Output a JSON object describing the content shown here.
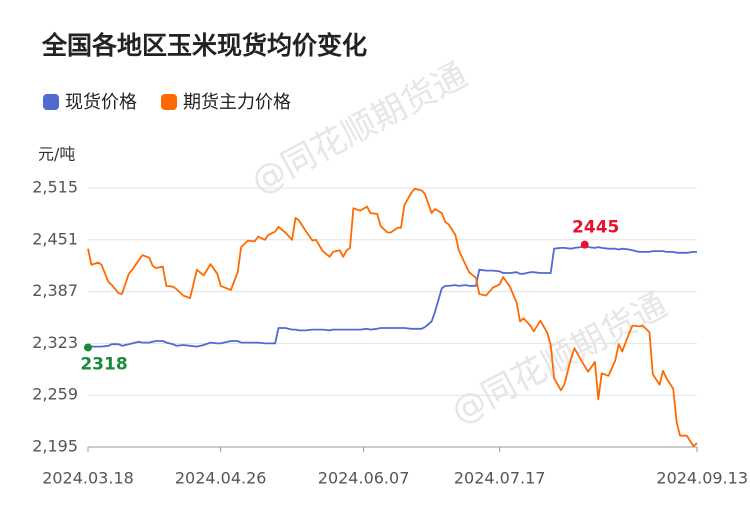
{
  "chart_data": {
    "type": "line",
    "title": "全国各地区玉米现货均价变化",
    "y_unit": "元/吨",
    "watermark": "@同花顺期货通",
    "x": [
      "2024.03.18",
      "2024.03.19",
      "2024.03.21",
      "2024.03.22",
      "2024.03.24",
      "2024.03.25",
      "2024.03.27",
      "2024.03.28",
      "2024.03.30",
      "2024.03.31",
      "2024.04.02",
      "2024.04.03",
      "2024.04.05",
      "2024.04.06",
      "2024.04.07",
      "2024.04.09",
      "2024.04.10",
      "2024.04.12",
      "2024.04.13",
      "2024.04.15",
      "2024.04.17",
      "2024.04.19",
      "2024.04.21",
      "2024.04.23",
      "2024.04.25",
      "2024.04.26",
      "2024.04.29",
      "2024.05.01",
      "2024.05.02",
      "2024.05.04",
      "2024.05.06",
      "2024.05.07",
      "2024.05.09",
      "2024.05.10",
      "2024.05.12",
      "2024.05.13",
      "2024.05.15",
      "2024.05.17",
      "2024.05.18",
      "2024.05.19",
      "2024.05.21",
      "2024.05.23",
      "2024.05.24",
      "2024.05.26",
      "2024.05.28",
      "2024.05.29",
      "2024.05.31",
      "2024.06.01",
      "2024.06.02",
      "2024.06.03",
      "2024.06.04",
      "2024.06.06",
      "2024.06.08",
      "2024.06.09",
      "2024.06.11",
      "2024.06.12",
      "2024.06.14",
      "2024.06.15",
      "2024.06.17",
      "2024.06.18",
      "2024.06.19",
      "2024.06.21",
      "2024.06.22",
      "2024.06.24",
      "2024.06.25",
      "2024.06.27",
      "2024.06.28",
      "2024.06.30",
      "2024.07.01",
      "2024.07.02",
      "2024.07.04",
      "2024.07.05",
      "2024.07.07",
      "2024.07.08",
      "2024.07.10",
      "2024.07.11",
      "2024.07.13",
      "2024.07.15",
      "2024.07.17",
      "2024.07.18",
      "2024.07.20",
      "2024.07.22",
      "2024.07.23",
      "2024.07.24",
      "2024.07.26",
      "2024.07.27",
      "2024.07.29",
      "2024.07.31",
      "2024.08.01",
      "2024.08.02",
      "2024.08.04",
      "2024.08.05",
      "2024.08.07",
      "2024.08.08",
      "2024.08.10",
      "2024.08.11",
      "2024.08.12",
      "2024.08.14",
      "2024.08.15",
      "2024.08.16",
      "2024.08.18",
      "2024.08.20",
      "2024.08.21",
      "2024.08.22",
      "2024.08.24",
      "2024.08.25",
      "2024.08.27",
      "2024.08.28",
      "2024.08.30",
      "2024.08.31",
      "2024.09.02",
      "2024.09.03",
      "2024.09.04",
      "2024.09.06",
      "2024.09.07",
      "2024.09.08",
      "2024.09.10",
      "2024.09.12",
      "2024.09.13"
    ],
    "series": [
      {
        "name": "现货价格",
        "color": "#4f6bd1",
        "values": [
          2318,
          2319,
          2319,
          2319,
          2320,
          2322,
          2322,
          2320,
          2322,
          2323,
          2325,
          2324,
          2324,
          2325,
          2326,
          2326,
          2324,
          2322,
          2320,
          2321,
          2320,
          2319,
          2321,
          2324,
          2323,
          2323,
          2326,
          2326,
          2324,
          2324,
          2324,
          2324,
          2323,
          2323,
          2323,
          2342,
          2342,
          2340,
          2340,
          2339,
          2339,
          2340,
          2340,
          2340,
          2339,
          2340,
          2340,
          2340,
          2340,
          2340,
          2340,
          2340,
          2341,
          2340,
          2341,
          2342,
          2342,
          2342,
          2342,
          2342,
          2342,
          2341,
          2341,
          2341,
          2343,
          2350,
          2362,
          2391,
          2394,
          2394,
          2395,
          2394,
          2395,
          2394,
          2394,
          2414,
          2413,
          2413,
          2412,
          2410,
          2410,
          2411,
          2409,
          2409,
          2411,
          2411,
          2410,
          2410,
          2410,
          2440,
          2441,
          2441,
          2440,
          2441,
          2442,
          2445,
          2442,
          2441,
          2442,
          2441,
          2440,
          2440,
          2439,
          2440,
          2439,
          2438,
          2436,
          2436,
          2436,
          2437,
          2437,
          2437,
          2436,
          2436,
          2435,
          2435,
          2435,
          2436,
          2436
        ]
      },
      {
        "name": "期货主力价格",
        "color": "#ff6a00",
        "values": [
          2440,
          2420,
          2423,
          2420,
          2399,
          2395,
          2385,
          2384,
          2409,
          2414,
          2426,
          2432,
          2429,
          2419,
          2416,
          2418,
          2394,
          2393,
          2390,
          2382,
          2379,
          2414,
          2407,
          2421,
          2409,
          2394,
          2389,
          2411,
          2442,
          2450,
          2449,
          2455,
          2451,
          2457,
          2461,
          2467,
          2460,
          2451,
          2478,
          2475,
          2462,
          2450,
          2451,
          2437,
          2430,
          2436,
          2438,
          2430,
          2438,
          2441,
          2490,
          2487,
          2492,
          2484,
          2483,
          2468,
          2460,
          2460,
          2466,
          2466,
          2494,
          2509,
          2514,
          2512,
          2508,
          2484,
          2489,
          2484,
          2473,
          2470,
          2457,
          2438,
          2420,
          2411,
          2404,
          2384,
          2382,
          2392,
          2396,
          2405,
          2393,
          2373,
          2350,
          2354,
          2345,
          2338,
          2351,
          2336,
          2321,
          2280,
          2265,
          2272,
          2305,
          2317,
          2302,
          2295,
          2288,
          2300,
          2254,
          2286,
          2283,
          2302,
          2322,
          2313,
          2335,
          2345,
          2344,
          2345,
          2337,
          2285,
          2272,
          2289,
          2280,
          2267,
          2226,
          2209,
          2209,
          2196,
          2200
        ]
      }
    ],
    "highlights": [
      {
        "series": 0,
        "index": 0,
        "color": "#1a8a3a",
        "position": "below"
      },
      {
        "series": 0,
        "index": 95,
        "color": "#e8112d",
        "position": "above"
      }
    ],
    "xlim": [
      "2024.03.18",
      "2024.09.13"
    ],
    "xticks": [
      "2024.03.18",
      "2024.04.26",
      "2024.06.07",
      "2024.07.17",
      "2024.09.13"
    ],
    "ylim": [
      2195,
      2515
    ],
    "yticks": [
      {
        "value": 2195,
        "label": "2,195"
      },
      {
        "value": 2259,
        "label": "2,259"
      },
      {
        "value": 2323,
        "label": "2,323"
      },
      {
        "value": 2387,
        "label": "2,387"
      },
      {
        "value": 2451,
        "label": "2,451"
      },
      {
        "value": 2515,
        "label": "2,515"
      }
    ],
    "grid": true,
    "legend": "top-left"
  }
}
